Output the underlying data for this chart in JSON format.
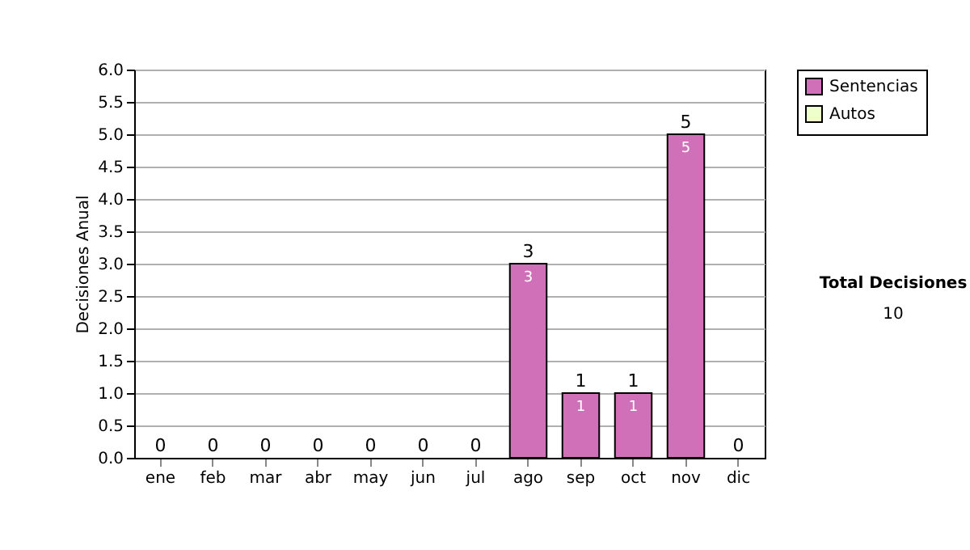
{
  "chart_data": {
    "type": "bar",
    "stacked": true,
    "ylabel": "Decisiones Anual",
    "categories": [
      "ene",
      "feb",
      "mar",
      "abr",
      "may",
      "jun",
      "jul",
      "ago",
      "sep",
      "oct",
      "nov",
      "dic"
    ],
    "series": [
      {
        "name": "Sentencias",
        "color": "#d070b8",
        "values": [
          0,
          0,
          0,
          0,
          0,
          0,
          0,
          3,
          1,
          1,
          5,
          0
        ],
        "value_labels": [
          null,
          null,
          null,
          null,
          null,
          null,
          null,
          "3",
          "1",
          "1",
          "5",
          null
        ]
      },
      {
        "name": "Autos",
        "color": "#eeffcc",
        "values": [
          0,
          0,
          0,
          0,
          0,
          0,
          0,
          0,
          0,
          0,
          0,
          0
        ]
      }
    ],
    "totals": [
      "0",
      "0",
      "0",
      "0",
      "0",
      "0",
      "0",
      "3",
      "1",
      "1",
      "5",
      "0"
    ],
    "ylim": [
      0,
      6
    ],
    "yticks": [
      {
        "value": 0,
        "label": "0.0"
      },
      {
        "value": 0.5,
        "label": "0.5"
      },
      {
        "value": 1,
        "label": "1.0"
      },
      {
        "value": 1.5,
        "label": "1.5"
      },
      {
        "value": 2,
        "label": "2.0"
      },
      {
        "value": 2.5,
        "label": "2.5"
      },
      {
        "value": 3,
        "label": "3.0"
      },
      {
        "value": 3.5,
        "label": "3.5"
      },
      {
        "value": 4,
        "label": "4.0"
      },
      {
        "value": 4.5,
        "label": "4.5"
      },
      {
        "value": 5,
        "label": "5.0"
      },
      {
        "value": 5.5,
        "label": "5.5"
      },
      {
        "value": 6,
        "label": "6.0"
      }
    ],
    "grid": "y",
    "legend": "right",
    "annotations": [
      "Total Decisiones",
      "10"
    ]
  }
}
